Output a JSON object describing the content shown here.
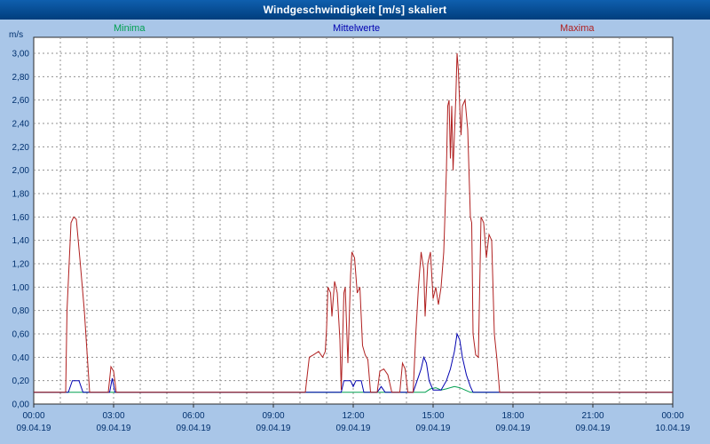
{
  "window": {
    "title": "Windgeschwindigkeit [m/s] skaliert"
  },
  "colors": {
    "background": "#a9c6e8",
    "titlebar": "#0a4f9b",
    "plot_background": "#ffffff",
    "plot_border": "#2a2a2a",
    "grid": "#909090",
    "tick_text": "#00306e"
  },
  "chart_data": {
    "type": "line",
    "title": "Windgeschwindigkeit [m/s] skaliert",
    "ylabel": "m/s",
    "xlabel": "",
    "ylim": [
      0.0,
      3.0
    ],
    "ytick_step": 0.2,
    "y_tick_labels": [
      "3,00",
      "2,80",
      "2,60",
      "2,40",
      "2,20",
      "2,00",
      "1,80",
      "1,60",
      "1,40",
      "1,20",
      "1,00",
      "0,80",
      "0,60",
      "0,40",
      "0,20",
      "0,00"
    ],
    "x_range": [
      0,
      24
    ],
    "grid": true,
    "legend_position": "top",
    "xticks": [
      {
        "hour": 0,
        "time": "00:00",
        "date": "09.04.19"
      },
      {
        "hour": 3,
        "time": "03:00",
        "date": "09.04.19"
      },
      {
        "hour": 6,
        "time": "06:00",
        "date": "09.04.19"
      },
      {
        "hour": 9,
        "time": "09:00",
        "date": "09.04.19"
      },
      {
        "hour": 12,
        "time": "12:00",
        "date": "09.04.19"
      },
      {
        "hour": 15,
        "time": "15:00",
        "date": "09.04.19"
      },
      {
        "hour": 18,
        "time": "18:00",
        "date": "09.04.19"
      },
      {
        "hour": 21,
        "time": "21:00",
        "date": "09.04.19"
      },
      {
        "hour": 24,
        "time": "00:00",
        "date": "10.04.19"
      }
    ],
    "series": [
      {
        "name": "Minima",
        "color": "#00a050",
        "points": [
          [
            0,
            0.1
          ],
          [
            14.7,
            0.1
          ],
          [
            14.9,
            0.13
          ],
          [
            15.1,
            0.14
          ],
          [
            15.3,
            0.12
          ],
          [
            15.5,
            0.13
          ],
          [
            15.8,
            0.15
          ],
          [
            16.0,
            0.14
          ],
          [
            16.2,
            0.12
          ],
          [
            16.4,
            0.1
          ],
          [
            24,
            0.1
          ]
        ]
      },
      {
        "name": "Mittelwerte",
        "color": "#0000b0",
        "points": [
          [
            0,
            0.1
          ],
          [
            1.3,
            0.1
          ],
          [
            1.45,
            0.2
          ],
          [
            1.7,
            0.2
          ],
          [
            1.85,
            0.1
          ],
          [
            2.85,
            0.1
          ],
          [
            2.95,
            0.22
          ],
          [
            3.05,
            0.1
          ],
          [
            11.55,
            0.1
          ],
          [
            11.65,
            0.2
          ],
          [
            11.9,
            0.2
          ],
          [
            12.0,
            0.15
          ],
          [
            12.1,
            0.2
          ],
          [
            12.3,
            0.2
          ],
          [
            12.4,
            0.1
          ],
          [
            12.9,
            0.1
          ],
          [
            13.05,
            0.15
          ],
          [
            13.2,
            0.1
          ],
          [
            14.25,
            0.1
          ],
          [
            14.4,
            0.2
          ],
          [
            14.55,
            0.3
          ],
          [
            14.65,
            0.4
          ],
          [
            14.75,
            0.35
          ],
          [
            14.85,
            0.2
          ],
          [
            15.0,
            0.12
          ],
          [
            15.3,
            0.12
          ],
          [
            15.5,
            0.2
          ],
          [
            15.65,
            0.3
          ],
          [
            15.8,
            0.45
          ],
          [
            15.9,
            0.6
          ],
          [
            16.0,
            0.55
          ],
          [
            16.1,
            0.4
          ],
          [
            16.25,
            0.25
          ],
          [
            16.4,
            0.15
          ],
          [
            16.5,
            0.1
          ],
          [
            24,
            0.1
          ]
        ]
      },
      {
        "name": "Maxima",
        "color": "#b02020",
        "points": [
          [
            0,
            0.1
          ],
          [
            1.2,
            0.1
          ],
          [
            1.25,
            0.8
          ],
          [
            1.4,
            1.55
          ],
          [
            1.5,
            1.6
          ],
          [
            1.6,
            1.58
          ],
          [
            1.75,
            1.2
          ],
          [
            1.9,
            0.8
          ],
          [
            2.0,
            0.45
          ],
          [
            2.1,
            0.1
          ],
          [
            2.8,
            0.1
          ],
          [
            2.9,
            0.32
          ],
          [
            3.0,
            0.28
          ],
          [
            3.1,
            0.1
          ],
          [
            10.2,
            0.1
          ],
          [
            10.35,
            0.4
          ],
          [
            10.5,
            0.42
          ],
          [
            10.7,
            0.45
          ],
          [
            10.85,
            0.4
          ],
          [
            10.95,
            0.45
          ],
          [
            11.0,
            0.65
          ],
          [
            11.05,
            1.0
          ],
          [
            11.15,
            0.95
          ],
          [
            11.2,
            0.75
          ],
          [
            11.3,
            1.05
          ],
          [
            11.4,
            0.95
          ],
          [
            11.5,
            0.55
          ],
          [
            11.55,
            0.12
          ],
          [
            11.65,
            0.95
          ],
          [
            11.7,
            1.0
          ],
          [
            11.8,
            0.35
          ],
          [
            11.9,
            1.1
          ],
          [
            11.95,
            1.3
          ],
          [
            12.05,
            1.25
          ],
          [
            12.15,
            0.95
          ],
          [
            12.25,
            1.0
          ],
          [
            12.35,
            0.5
          ],
          [
            12.45,
            0.42
          ],
          [
            12.55,
            0.38
          ],
          [
            12.65,
            0.1
          ],
          [
            12.9,
            0.1
          ],
          [
            13.0,
            0.28
          ],
          [
            13.15,
            0.3
          ],
          [
            13.3,
            0.25
          ],
          [
            13.45,
            0.1
          ],
          [
            13.75,
            0.1
          ],
          [
            13.85,
            0.35
          ],
          [
            13.95,
            0.3
          ],
          [
            14.05,
            0.1
          ],
          [
            14.25,
            0.1
          ],
          [
            14.35,
            0.6
          ],
          [
            14.45,
            1.0
          ],
          [
            14.55,
            1.3
          ],
          [
            14.65,
            1.15
          ],
          [
            14.7,
            0.75
          ],
          [
            14.8,
            1.2
          ],
          [
            14.9,
            1.3
          ],
          [
            15.0,
            0.9
          ],
          [
            15.1,
            1.0
          ],
          [
            15.2,
            0.85
          ],
          [
            15.3,
            1.0
          ],
          [
            15.4,
            1.3
          ],
          [
            15.5,
            2.0
          ],
          [
            15.55,
            2.55
          ],
          [
            15.6,
            2.6
          ],
          [
            15.65,
            2.1
          ],
          [
            15.7,
            2.55
          ],
          [
            15.75,
            2.0
          ],
          [
            15.85,
            2.6
          ],
          [
            15.9,
            3.0
          ],
          [
            15.95,
            2.85
          ],
          [
            16.0,
            2.55
          ],
          [
            16.05,
            2.3
          ],
          [
            16.1,
            2.55
          ],
          [
            16.2,
            2.6
          ],
          [
            16.3,
            2.35
          ],
          [
            16.4,
            1.6
          ],
          [
            16.45,
            1.55
          ],
          [
            16.5,
            0.6
          ],
          [
            16.6,
            0.42
          ],
          [
            16.7,
            0.4
          ],
          [
            16.8,
            1.6
          ],
          [
            16.9,
            1.55
          ],
          [
            17.0,
            1.25
          ],
          [
            17.1,
            1.45
          ],
          [
            17.2,
            1.4
          ],
          [
            17.3,
            0.6
          ],
          [
            17.4,
            0.38
          ],
          [
            17.5,
            0.1
          ],
          [
            24,
            0.1
          ]
        ]
      }
    ]
  }
}
